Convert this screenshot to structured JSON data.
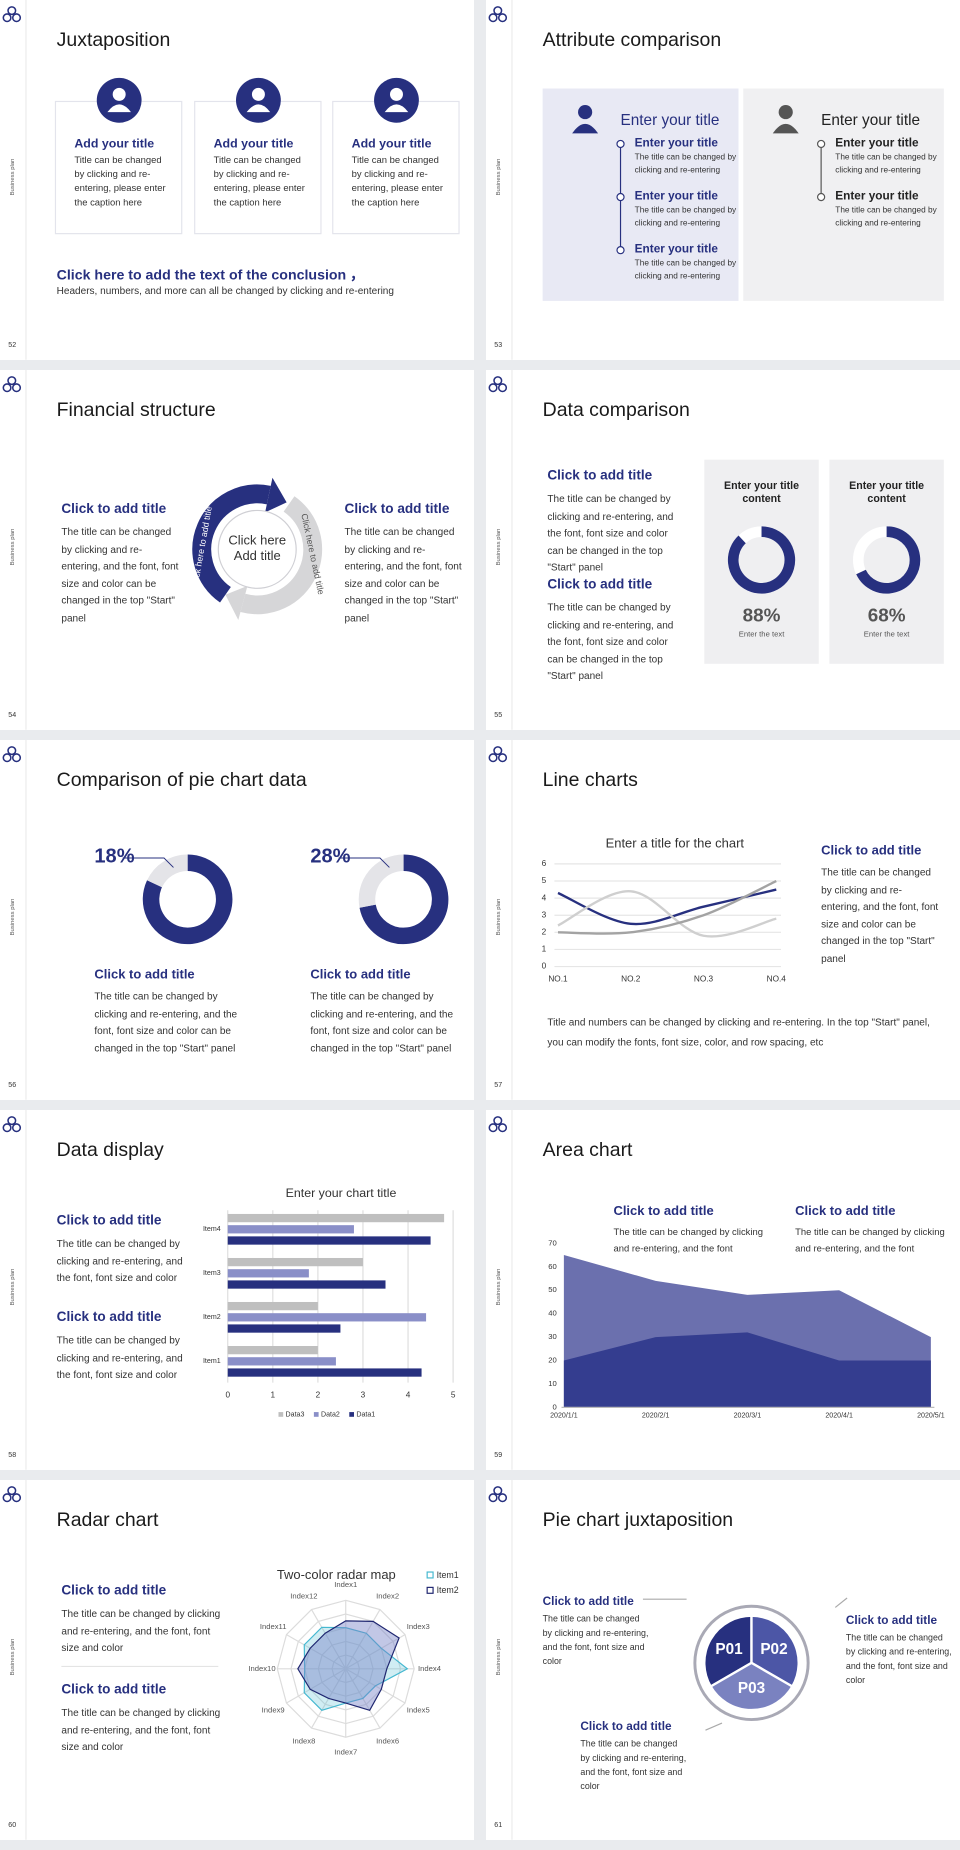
{
  "slides": [
    {
      "number": "52",
      "side_label": "Business plan",
      "title": "Juxtaposition",
      "cards": [
        {
          "title": "Add your title",
          "text": "Title can be changed by clicking and re-entering, please enter the caption here"
        },
        {
          "title": "Add your title",
          "text": "Title can be changed by clicking and re-entering, please enter the caption here"
        },
        {
          "title": "Add your title",
          "text": "Title can be changed by clicking and re-entering, please enter the caption here"
        }
      ],
      "conclusion": {
        "title": "Click here to add the text of the conclusion ，",
        "text": "Headers, numbers, and more can all be changed by clicking and re-entering"
      }
    },
    {
      "number": "53",
      "side_label": "Business plan",
      "title": "Attribute comparison",
      "panels": [
        {
          "title": "Enter your title",
          "items": [
            {
              "title": "Enter your title",
              "text": "The title can be changed by clicking and re-entering"
            },
            {
              "title": "Enter your title",
              "text": "The title can be changed by clicking and re-entering"
            },
            {
              "title": "Enter your title",
              "text": "The title can be changed by clicking and re-entering"
            }
          ]
        },
        {
          "title": "Enter your title",
          "items": [
            {
              "title": "Enter your title",
              "text": "The title can be changed by clicking and re-entering"
            },
            {
              "title": "Enter your title",
              "text": "The title can be changed by clicking and re-entering"
            }
          ]
        }
      ]
    },
    {
      "number": "54",
      "side_label": "Business plan",
      "title": "Financial structure",
      "blocks": [
        {
          "title": "Click to add title",
          "text": "The title can be changed by clicking and re-entering, and the font, font size and color can be changed in the top \"Start\" panel"
        },
        {
          "title": "Click to add title",
          "text": "The title can be changed by clicking and re-entering, and the font, font size and color can be changed in the top \"Start\" panel"
        }
      ],
      "cycle": {
        "center": "Click here Add title",
        "arrows": [
          "Click here to add title",
          "Click here to add title"
        ]
      }
    },
    {
      "number": "55",
      "side_label": "Business plan",
      "title": "Data comparison",
      "blocks": [
        {
          "title": "Click to add title",
          "text": "The title can be changed by clicking and re-entering, and the font, font size and color can be changed in the top \"Start\" panel"
        },
        {
          "title": "Click to add title",
          "text": "The title can be changed by clicking and re-entering, and the font, font size and color can be changed in the top \"Start\" panel"
        }
      ],
      "cards": [
        {
          "title": "Enter your title content",
          "value": 88,
          "value_label": "88%",
          "caption": "Enter the text"
        },
        {
          "title": "Enter your title content",
          "value": 68,
          "value_label": "68%",
          "caption": "Enter the text"
        }
      ]
    },
    {
      "number": "56",
      "side_label": "Business plan",
      "title": "Comparison of pie chart data",
      "donuts": [
        {
          "value": 18,
          "value_label": "18%",
          "title": "Click to add title",
          "text": "The title can be changed by clicking and re-entering, and the font, font size and color can be changed in the top \"Start\" panel"
        },
        {
          "value": 28,
          "value_label": "28%",
          "title": "Click to add title",
          "text": "The title can be changed by clicking and re-entering, and the font, font size and color can be changed in the top \"Start\" panel"
        }
      ]
    },
    {
      "number": "57",
      "side_label": "Business plan",
      "title": "Line charts",
      "chart": {
        "type": "line",
        "title": "Enter a title for the chart",
        "categories": [
          "NO.1",
          "NO.2",
          "NO.3",
          "NO.4"
        ],
        "series": [
          {
            "color": "#27307f",
            "values": [
              4.3,
              2.5,
              3.5,
              4.5
            ]
          },
          {
            "color": "#cfcfcf",
            "values": [
              2.4,
              4.4,
              1.8,
              2.8
            ]
          },
          {
            "color": "#a3a3a3",
            "values": [
              2,
              2,
              3,
              5
            ]
          }
        ],
        "ylim": [
          0,
          6
        ],
        "yticks": [
          0,
          1,
          2,
          3,
          4,
          5,
          6
        ],
        "grid": true
      },
      "blocks": [
        {
          "title": "Click to add title",
          "text": "The title can be changed by clicking and re-entering, and the font, font size and color can be changed in the top \"Start\" panel"
        }
      ],
      "note": "Title and numbers can be changed by clicking and re-entering. In the top \"Start\" panel, you can modify the fonts, font size, color, and row spacing, etc"
    },
    {
      "number": "58",
      "side_label": "Business plan",
      "title": "Data display",
      "chart": {
        "type": "bar",
        "title": "Enter your chart title",
        "categories": [
          "Item1",
          "Item2",
          "Item3",
          "Item4"
        ],
        "series": [
          {
            "name": "Data1",
            "color": "#27307f",
            "values": [
              4.3,
              2.5,
              3.5,
              4.5
            ]
          },
          {
            "name": "Data2",
            "color": "#8a8fc8",
            "values": [
              2.4,
              4.4,
              1.8,
              2.8
            ]
          },
          {
            "name": "Data3",
            "color": "#bfbfbf",
            "values": [
              2,
              2,
              3,
              4.8
            ]
          }
        ],
        "xlim": [
          0,
          5
        ],
        "xticks": [
          0,
          1,
          2,
          3,
          4,
          5
        ],
        "grid": true
      },
      "blocks": [
        {
          "title": "Click to add title",
          "text": "The title can be changed by clicking and re-entering, and the font, font size and color"
        },
        {
          "title": "Click to add title",
          "text": "The title can be changed by clicking and re-entering, and the font, font size and color"
        }
      ]
    },
    {
      "number": "59",
      "side_label": "Business plan",
      "title": "Area chart",
      "chart": {
        "type": "area",
        "x": [
          "2020/1/1",
          "2020/2/1",
          "2020/3/1",
          "2020/4/1",
          "2020/5/1"
        ],
        "series": [
          {
            "color": "#6b70ae",
            "values": [
              65,
              54,
              48,
              50,
              30
            ]
          },
          {
            "color": "#343d8f",
            "values": [
              20,
              30,
              32,
              20,
              20
            ]
          }
        ],
        "ylim": [
          0,
          70
        ],
        "yticks": [
          0,
          10,
          20,
          30,
          40,
          50,
          60,
          70
        ]
      },
      "blocks": [
        {
          "title": "Click to add title",
          "text": "The title can be changed by clicking and re-entering, and the font"
        },
        {
          "title": "Click to add title",
          "text": "The title can be changed by clicking and re-entering, and the font"
        }
      ]
    },
    {
      "number": "60",
      "side_label": "Business plan",
      "title": "Radar chart",
      "chart": {
        "type": "radar",
        "title": "Two-color radar map",
        "categories": [
          "Index1",
          "Index2",
          "Index3",
          "Index4",
          "Index5",
          "Index6",
          "Index7",
          "Index8",
          "Index9",
          "Index10",
          "Index11",
          "Index12"
        ],
        "series": [
          {
            "name": "Item1",
            "color": "#45b8d0",
            "values": [
              3,
              3,
              3,
              4.5,
              2.5,
              2.5,
              2.5,
              3.5,
              3.5,
              3,
              3.5,
              3.5
            ]
          },
          {
            "name": "Item2",
            "color": "#1f2670",
            "values": [
              3.5,
              4,
              4.5,
              3,
              3,
              3.5,
              2.5,
              2.5,
              3,
              3.5,
              3,
              3
            ]
          }
        ],
        "rlim": [
          0,
          5
        ],
        "rticks": [
          1,
          2,
          3,
          4,
          5
        ]
      },
      "blocks": [
        {
          "title": "Click to add title",
          "text": "The title can be changed by clicking and re-entering, and the font, font size and color"
        },
        {
          "title": "Click to add title",
          "text": "The title can be changed by clicking and re-entering, and the font, font size and color"
        }
      ]
    },
    {
      "number": "61",
      "side_label": "Business plan",
      "title": "Pie chart juxtaposition",
      "segments": [
        "P01",
        "P02",
        "P03"
      ],
      "blocks": [
        {
          "title": "Click to add title",
          "text": "The title can be changed by clicking and re-entering, and the font, font size and color"
        },
        {
          "title": "Click to add title",
          "text": "The title can be changed by clicking and re-entering, and the font, font size and color"
        },
        {
          "title": "Click to add title",
          "text": "The title can be changed by clicking and re-entering, and the font, font size and color"
        }
      ]
    }
  ]
}
